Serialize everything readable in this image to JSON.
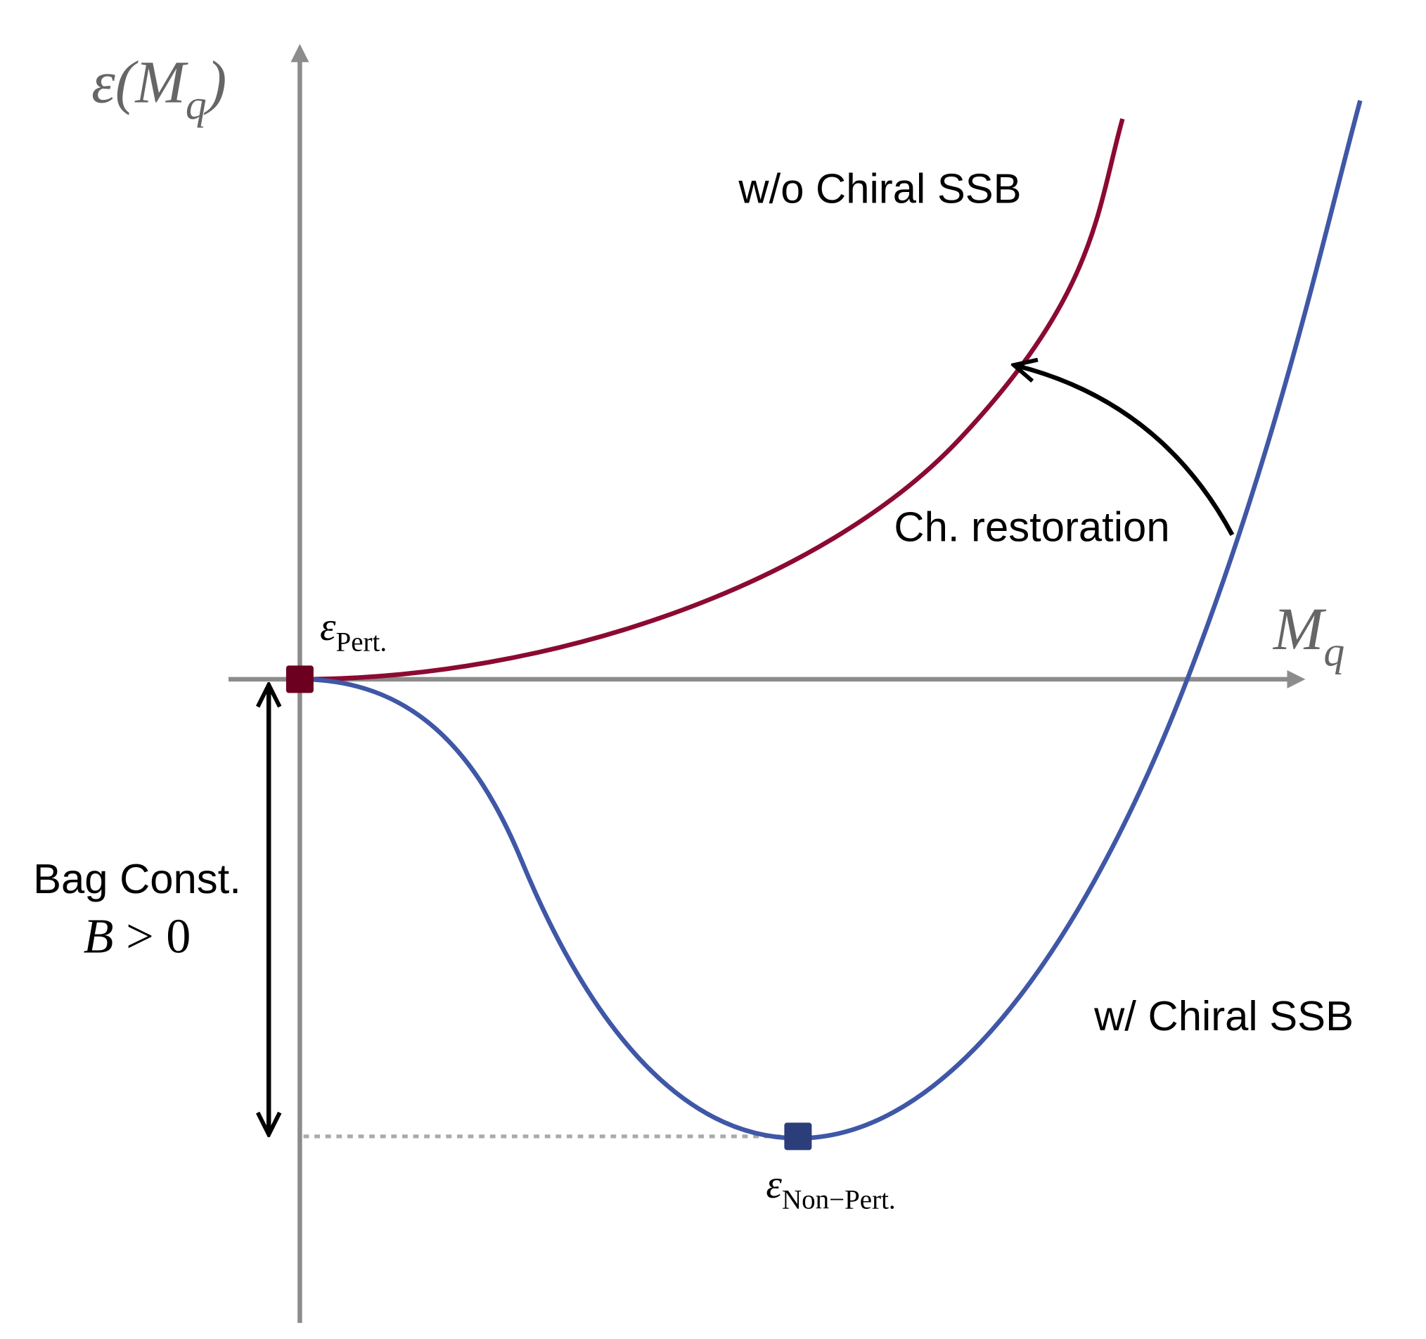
{
  "axes": {
    "y_label": {
      "prefix": "ε(M",
      "subscript": "q",
      "suffix": ")"
    },
    "x_label": {
      "main": "M",
      "subscript": "q"
    }
  },
  "points": {
    "perturbative": {
      "main": "ε",
      "subscript": "Pert."
    },
    "non_perturbative": {
      "main": "ε",
      "subscript": "Non−Pert."
    }
  },
  "curves": {
    "without_ssb": "w/o Chiral SSB",
    "with_ssb": "w/ Chiral SSB"
  },
  "annotations": {
    "restoration": "Ch. restoration",
    "bag": {
      "line1": "Bag Const.",
      "line2_var": "B",
      "line2_rest": " > 0"
    }
  }
}
